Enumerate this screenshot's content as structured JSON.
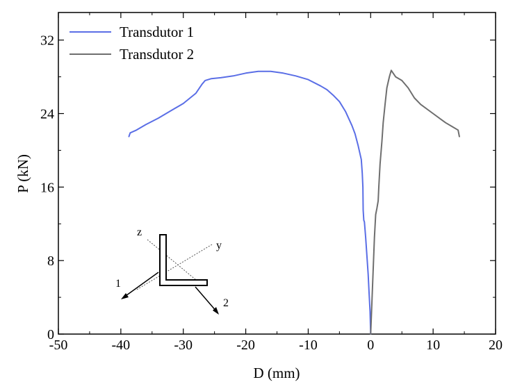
{
  "chart_data": {
    "type": "line",
    "title": "",
    "xlabel": "D (mm)",
    "ylabel": "P (kN)",
    "xlim": [
      -50,
      20
    ],
    "ylim": [
      0,
      35
    ],
    "xticks": [
      -50,
      -40,
      -30,
      -20,
      -10,
      0,
      10,
      20
    ],
    "yticks": [
      0,
      8,
      16,
      24,
      32
    ],
    "grid": false,
    "legend_position": "top-left",
    "series": [
      {
        "name": "Transdutor 1",
        "color": "#5a6ee6",
        "x": [
          0,
          -0.1,
          -0.25,
          -0.4,
          -0.6,
          -0.8,
          -1.0,
          -1.1,
          -1.2,
          -1.25,
          -1.35,
          -1.5,
          -2.0,
          -2.5,
          -3.0,
          -4.0,
          -5.0,
          -6.0,
          -7.0,
          -8.0,
          -10.0,
          -12.0,
          -14.0,
          -16.0,
          -18.0,
          -20.0,
          -22.0,
          -24.0,
          -25.5,
          -26.5,
          -27.0,
          -28.0,
          -30.0,
          -32.0,
          -34.0,
          -36.0,
          -37.5,
          -38.5,
          -38.7
        ],
        "y": [
          0,
          2.5,
          4.5,
          6.5,
          8.5,
          10.5,
          12.2,
          12.4,
          13.5,
          16.0,
          17.5,
          19.0,
          20.5,
          21.8,
          22.7,
          24.2,
          25.3,
          26.0,
          26.6,
          27.0,
          27.7,
          28.1,
          28.4,
          28.6,
          28.6,
          28.4,
          28.1,
          27.9,
          27.8,
          27.6,
          27.2,
          26.2,
          25.1,
          24.3,
          23.5,
          22.8,
          22.2,
          21.9,
          21.5
        ]
      },
      {
        "name": "Transdutor 2",
        "color": "#6e6e6e",
        "x": [
          0,
          0.2,
          0.4,
          0.6,
          0.8,
          1.0,
          1.2,
          1.3,
          1.5,
          1.8,
          2.0,
          2.3,
          2.6,
          3.0,
          3.3,
          3.6,
          4.0,
          5.0,
          6.0,
          7.0,
          8.0,
          10.0,
          12.0,
          13.0,
          14.0,
          14.2
        ],
        "y": [
          0,
          3.5,
          7.0,
          10.5,
          13.0,
          13.7,
          14.5,
          16.0,
          18.5,
          21.0,
          23.0,
          25.0,
          26.8,
          28.0,
          28.7,
          28.4,
          28.0,
          27.6,
          26.8,
          25.7,
          25.0,
          24.0,
          23.0,
          22.6,
          22.2,
          21.5
        ]
      }
    ],
    "inset": {
      "labels": {
        "z": "z",
        "y": "y",
        "one": "1",
        "two": "2"
      }
    }
  }
}
